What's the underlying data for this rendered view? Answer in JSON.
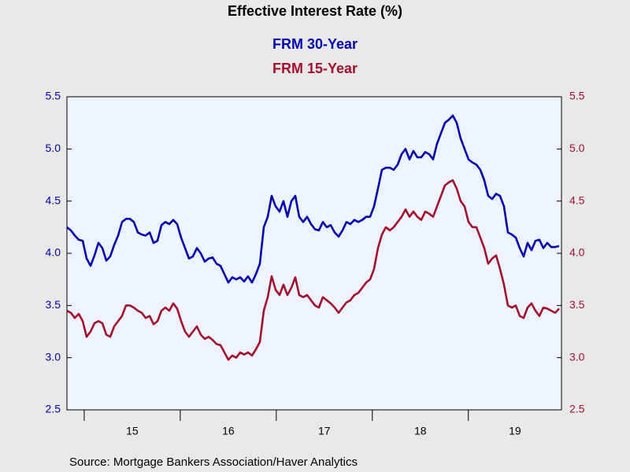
{
  "chart_data": {
    "type": "line",
    "title": "Effective Interest Rate (%)",
    "source": "Source:  Mortgage Bankers Association/Haver Analytics",
    "x": [
      2014.82,
      2014.861,
      2014.902,
      2014.943,
      2014.984,
      2015.025,
      2015.066,
      2015.107,
      2015.148,
      2015.189,
      2015.23,
      2015.271,
      2015.312,
      2015.353,
      2015.394,
      2015.435,
      2015.476,
      2015.517,
      2015.558,
      2015.599,
      2015.64,
      2015.681,
      2015.722,
      2015.763,
      2015.804,
      2015.845,
      2015.886,
      2015.927,
      2015.968,
      2016.009,
      2016.05,
      2016.091,
      2016.132,
      2016.173,
      2016.214,
      2016.255,
      2016.296,
      2016.337,
      2016.378,
      2016.419,
      2016.46,
      2016.501,
      2016.542,
      2016.583,
      2016.624,
      2016.665,
      2016.706,
      2016.747,
      2016.788,
      2016.829,
      2016.87,
      2016.911,
      2016.952,
      2016.993,
      2017.034,
      2017.075,
      2017.116,
      2017.157,
      2017.198,
      2017.239,
      2017.28,
      2017.321,
      2017.362,
      2017.403,
      2017.444,
      2017.485,
      2017.526,
      2017.567,
      2017.608,
      2017.649,
      2017.69,
      2017.731,
      2017.772,
      2017.813,
      2017.854,
      2017.895,
      2017.936,
      2017.977,
      2018.018,
      2018.059,
      2018.1,
      2018.141,
      2018.182,
      2018.223,
      2018.264,
      2018.305,
      2018.346,
      2018.387,
      2018.428,
      2018.469,
      2018.51,
      2018.551,
      2018.592,
      2018.633,
      2018.674,
      2018.715,
      2018.756,
      2018.797,
      2018.838,
      2018.879,
      2018.92,
      2018.961,
      2019.002,
      2019.043,
      2019.084,
      2019.125,
      2019.166,
      2019.207,
      2019.248,
      2019.289,
      2019.33,
      2019.371,
      2019.412,
      2019.453,
      2019.494,
      2019.535,
      2019.576,
      2019.617,
      2019.658,
      2019.699,
      2019.74,
      2019.781,
      2019.822,
      2019.863,
      2019.904,
      2019.945
    ],
    "series": [
      {
        "name": "FRM 30-Year",
        "color": "#0000b4",
        "axis": "y",
        "values": [
          4.25,
          4.22,
          4.17,
          4.13,
          4.12,
          3.95,
          3.88,
          3.98,
          4.1,
          4.05,
          3.93,
          3.97,
          4.08,
          4.17,
          4.3,
          4.33,
          4.33,
          4.3,
          4.2,
          4.18,
          4.17,
          4.2,
          4.1,
          4.12,
          4.27,
          4.3,
          4.28,
          4.32,
          4.28,
          4.15,
          4.05,
          3.95,
          3.97,
          4.05,
          4.0,
          3.92,
          3.95,
          3.96,
          3.9,
          3.88,
          3.8,
          3.72,
          3.77,
          3.75,
          3.77,
          3.73,
          3.78,
          3.72,
          3.8,
          3.9,
          4.25,
          4.35,
          4.55,
          4.45,
          4.4,
          4.5,
          4.35,
          4.5,
          4.55,
          4.35,
          4.3,
          4.35,
          4.28,
          4.23,
          4.22,
          4.3,
          4.25,
          4.27,
          4.2,
          4.16,
          4.22,
          4.3,
          4.28,
          4.32,
          4.3,
          4.32,
          4.35,
          4.35,
          4.45,
          4.62,
          4.8,
          4.82,
          4.82,
          4.8,
          4.85,
          4.95,
          5.0,
          4.9,
          4.98,
          4.92,
          4.92,
          4.97,
          4.95,
          4.9,
          5.05,
          5.15,
          5.25,
          5.28,
          5.32,
          5.25,
          5.1,
          5.0,
          4.9,
          4.87,
          4.85,
          4.8,
          4.7,
          4.55,
          4.52,
          4.57,
          4.55,
          4.45,
          4.2,
          4.18,
          4.15,
          4.05,
          3.97,
          4.1,
          4.03,
          4.12,
          4.13,
          4.05,
          4.1,
          4.06,
          4.06,
          4.07
        ]
      },
      {
        "name": "FRM 15-Year",
        "color": "#a50f2d",
        "axis": "y2",
        "values": [
          3.45,
          3.43,
          3.38,
          3.42,
          3.35,
          3.2,
          3.25,
          3.33,
          3.35,
          3.33,
          3.22,
          3.2,
          3.3,
          3.35,
          3.4,
          3.5,
          3.5,
          3.48,
          3.45,
          3.43,
          3.38,
          3.4,
          3.32,
          3.35,
          3.45,
          3.48,
          3.45,
          3.52,
          3.47,
          3.35,
          3.25,
          3.2,
          3.25,
          3.3,
          3.22,
          3.18,
          3.2,
          3.17,
          3.13,
          3.12,
          3.05,
          2.98,
          3.02,
          3.0,
          3.05,
          3.03,
          3.05,
          3.02,
          3.08,
          3.15,
          3.45,
          3.58,
          3.78,
          3.65,
          3.6,
          3.7,
          3.6,
          3.67,
          3.77,
          3.6,
          3.58,
          3.6,
          3.55,
          3.5,
          3.48,
          3.58,
          3.55,
          3.52,
          3.48,
          3.43,
          3.48,
          3.53,
          3.55,
          3.6,
          3.62,
          3.67,
          3.72,
          3.75,
          3.85,
          4.05,
          4.18,
          4.25,
          4.22,
          4.25,
          4.3,
          4.35,
          4.42,
          4.35,
          4.4,
          4.35,
          4.32,
          4.4,
          4.38,
          4.35,
          4.45,
          4.55,
          4.65,
          4.68,
          4.7,
          4.62,
          4.5,
          4.45,
          4.3,
          4.25,
          4.25,
          4.15,
          4.05,
          3.9,
          3.95,
          3.98,
          3.85,
          3.7,
          3.5,
          3.48,
          3.5,
          3.4,
          3.38,
          3.48,
          3.52,
          3.45,
          3.4,
          3.48,
          3.47,
          3.45,
          3.43,
          3.47
        ]
      }
    ],
    "xlim": [
      2014.82,
      2019.97
    ],
    "xticks": [
      2015,
      2016,
      2017,
      2018,
      2019
    ],
    "period_labels": [
      "15",
      "16",
      "17",
      "18",
      "19"
    ],
    "ylim": [
      2.5,
      5.5
    ],
    "yticks": [
      2.5,
      {
        "value": 3,
        "label": "3.0"
      },
      3.5,
      {
        "value": 4,
        "label": "4.0"
      },
      4.5,
      {
        "value": 5,
        "label": "5.0"
      },
      5.5
    ],
    "y2lim": [
      2.5,
      5.5
    ],
    "y2ticks": [
      2.5,
      {
        "value": 3,
        "label": "3.0"
      },
      3.5,
      {
        "value": 4,
        "label": "4.0"
      },
      4.5,
      {
        "value": 5,
        "label": "5.0"
      },
      5.5
    ]
  }
}
